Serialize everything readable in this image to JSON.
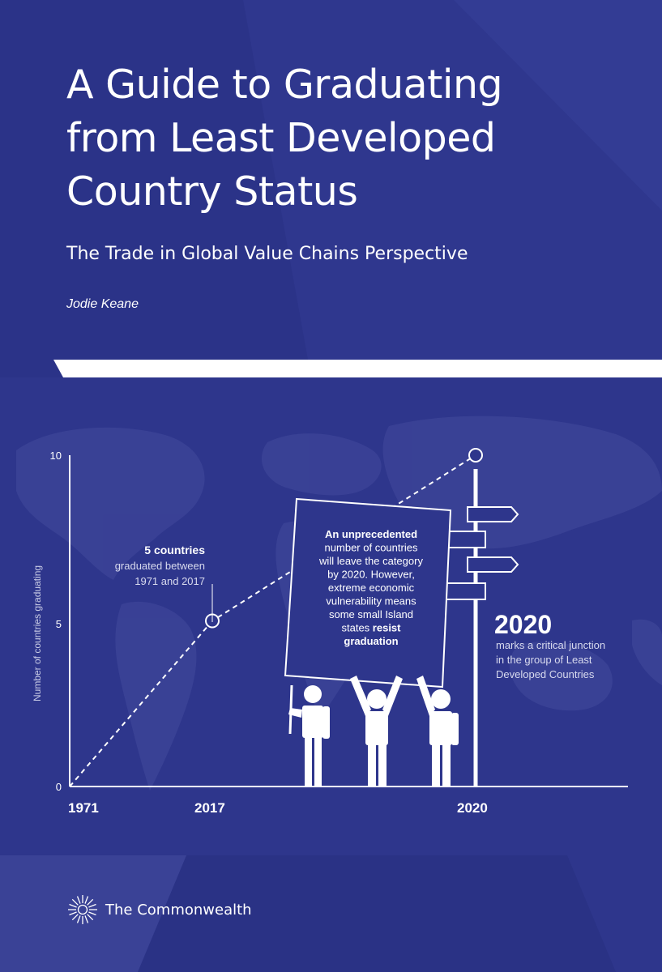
{
  "cover": {
    "title": "A Guide to Graduating\nfrom Least Developed\nCountry Status",
    "subtitle": "The Trade in Global Value Chains Perspective",
    "author": "Jodie Keane"
  },
  "publisher": {
    "name": "The Commonwealth"
  },
  "colors": {
    "background": "#2b3388",
    "panel": "#2e368c",
    "accent": "#ffffff"
  },
  "chart_data": {
    "type": "line",
    "ylabel": "Number of countries graduating",
    "y_ticks": [
      "10",
      "5",
      "0"
    ],
    "ylim": [
      0,
      10
    ],
    "x_ticks": [
      "1971",
      "2017",
      "2020"
    ],
    "series": [
      {
        "x": [
          1971,
          2017,
          2020
        ],
        "values": [
          0,
          5,
          10
        ]
      }
    ],
    "annotations": {
      "callout_2017": {
        "heading": "5 countries",
        "lines": [
          "graduated between",
          "1971 and 2017"
        ]
      },
      "sign": [
        {
          "text": "An unprecedented",
          "bold": true
        },
        {
          "text": "number of countries",
          "bold": false
        },
        {
          "text": "will leave the category",
          "bold": false
        },
        {
          "text": "by 2020. However,",
          "bold": false
        },
        {
          "text": "extreme economic",
          "bold": false
        },
        {
          "text": "vulnerability means",
          "bold": false
        },
        {
          "text": "some small Island",
          "bold": false
        },
        {
          "text": "states",
          "bold": false,
          "suffix": "resist"
        },
        {
          "text": "graduation",
          "bold": true
        }
      ],
      "callout_2020": {
        "heading": "2020",
        "lines": [
          "marks a critical junction",
          "in the group of Least",
          "Developed Countries"
        ]
      }
    }
  }
}
